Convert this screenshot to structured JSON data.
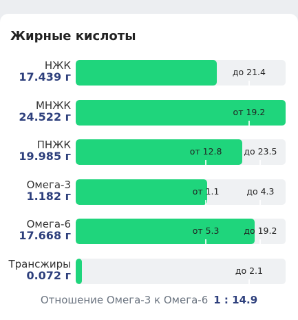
{
  "title": "Жирные кислоты",
  "rows": [
    {
      "name": "НЖК",
      "value": 17.439,
      "value_label": "17.439 г",
      "max": {
        "value": 21.4,
        "label": "до 21.4"
      }
    },
    {
      "name": "МНЖК",
      "value": 24.522,
      "value_label": "24.522 г",
      "min": {
        "value": 19.2,
        "label": "от 19.2"
      }
    },
    {
      "name": "ПНЖК",
      "value": 19.985,
      "value_label": "19.985 г",
      "min": {
        "value": 12.8,
        "label": "от 12.8"
      },
      "max": {
        "value": 23.5,
        "label": "до 23.5"
      }
    },
    {
      "name": "Омега-3",
      "value": 1.182,
      "value_label": "1.182 г",
      "min": {
        "value": 1.1,
        "label": "от 1.1"
      },
      "max": {
        "value": 4.3,
        "label": "до 4.3"
      }
    },
    {
      "name": "Омега-6",
      "value": 17.668,
      "value_label": "17.668 г",
      "min": {
        "value": 5.3,
        "label": "от 5.3"
      },
      "max": {
        "value": 19.2,
        "label": "до 19.2"
      }
    },
    {
      "name": "Трансжиры",
      "value": 0.072,
      "value_label": "0.072 г",
      "max": {
        "value": 2.1,
        "label": "до 2.1"
      }
    }
  ],
  "ratio": {
    "label": "Отношение Омега-3 к Омега-6",
    "value": "1 : 14.9"
  }
}
